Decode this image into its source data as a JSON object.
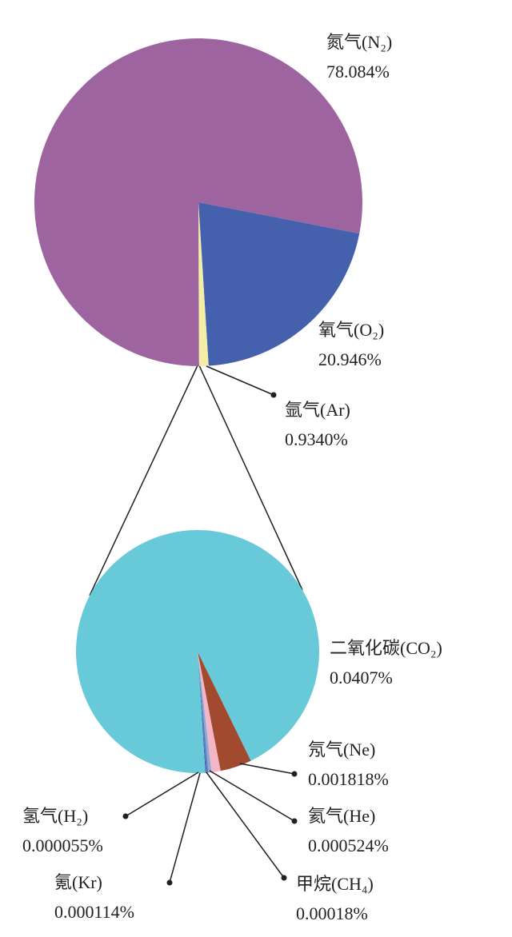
{
  "chart_data": [
    {
      "type": "pie",
      "categories": [
        "氧气(O₂)",
        "氩气(Ar)",
        "氮气(N₂)"
      ],
      "values": [
        20.946,
        0.934,
        78.084
      ],
      "value_labels": [
        "20.946%",
        "0.9340%",
        "78.084%"
      ],
      "colors": [
        "#4561ad",
        "#f3eda6",
        "#9d64a0"
      ]
    },
    {
      "type": "pie",
      "categories": [
        "氖气(Ne)",
        "氦气(He)",
        "甲烷(CH₄)",
        "氪(Kr)",
        "氢气(H₂)",
        "二氧化碳(CO₂)"
      ],
      "values": [
        0.001818,
        0.000524,
        0.00018,
        0.000114,
        5.5e-05,
        0.0407
      ],
      "value_labels": [
        "0.001818%",
        "0.000524%",
        "0.00018%",
        "0.000114%",
        "0.000055%",
        "0.0407%"
      ],
      "colors": [
        "#a24a2f",
        "#f2b6c6",
        "#8aa8d8",
        "#5b7fc0",
        "#3c5aa8",
        "#68c9d8"
      ]
    }
  ]
}
